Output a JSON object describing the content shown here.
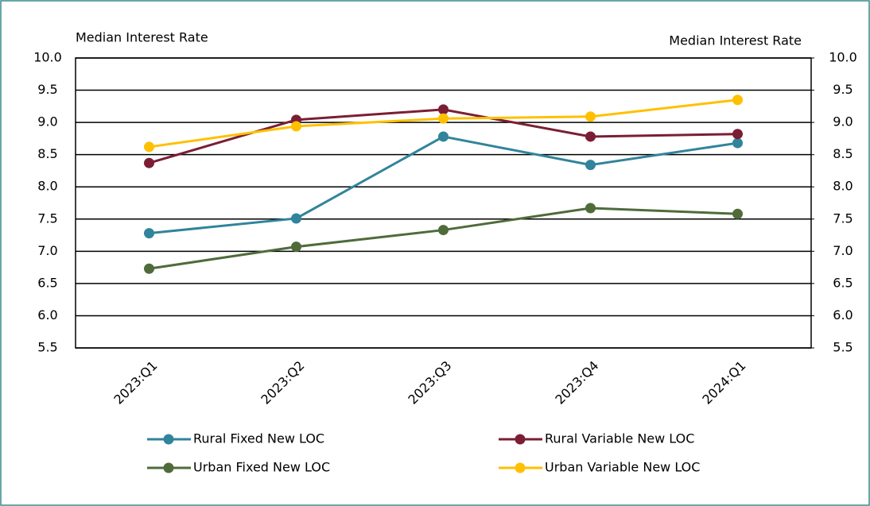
{
  "chart_data": {
    "type": "line",
    "y_label": "Median Interest Rate",
    "y2_label": "Median Interest Rate",
    "categories": [
      "2023:Q1",
      "2023:Q2",
      "2023:Q3",
      "2023:Q4",
      "2024:Q1"
    ],
    "series": [
      {
        "name": "Rural Fixed New LOC",
        "color": "#31849b",
        "values": [
          7.28,
          7.51,
          8.78,
          8.34,
          8.68
        ]
      },
      {
        "name": "Rural Variable New LOC",
        "color": "#7b1e34",
        "values": [
          8.37,
          9.04,
          9.2,
          8.78,
          8.82
        ]
      },
      {
        "name": "Urban Fixed New LOC",
        "color": "#4f6b3a",
        "values": [
          6.73,
          7.07,
          7.33,
          7.67,
          7.58
        ]
      },
      {
        "name": "Urban Variable New LOC",
        "color": "#ffc000",
        "values": [
          8.62,
          8.94,
          9.06,
          9.09,
          9.35
        ]
      }
    ],
    "ylim": [
      5.5,
      10
    ],
    "yticks": [
      5.5,
      {
        "value": 6,
        "label": "6.0"
      },
      6.5,
      {
        "value": 7,
        "label": "7.0"
      },
      7.5,
      {
        "value": 8,
        "label": "8.0"
      },
      8.5,
      {
        "value": 9,
        "label": "9.0"
      },
      9.5,
      {
        "value": 10,
        "label": "10.0"
      }
    ],
    "y2lim": [
      5.5,
      10
    ],
    "y2ticks": [
      5.5,
      {
        "value": 6,
        "label": "6.0"
      },
      6.5,
      {
        "value": 7,
        "label": "7.0"
      },
      7.5,
      {
        "value": 8,
        "label": "8.0"
      },
      8.5,
      {
        "value": 9,
        "label": "9.0"
      },
      9.5,
      {
        "value": 10,
        "label": "10.0"
      }
    ],
    "grid": true,
    "legend": "bottom"
  }
}
